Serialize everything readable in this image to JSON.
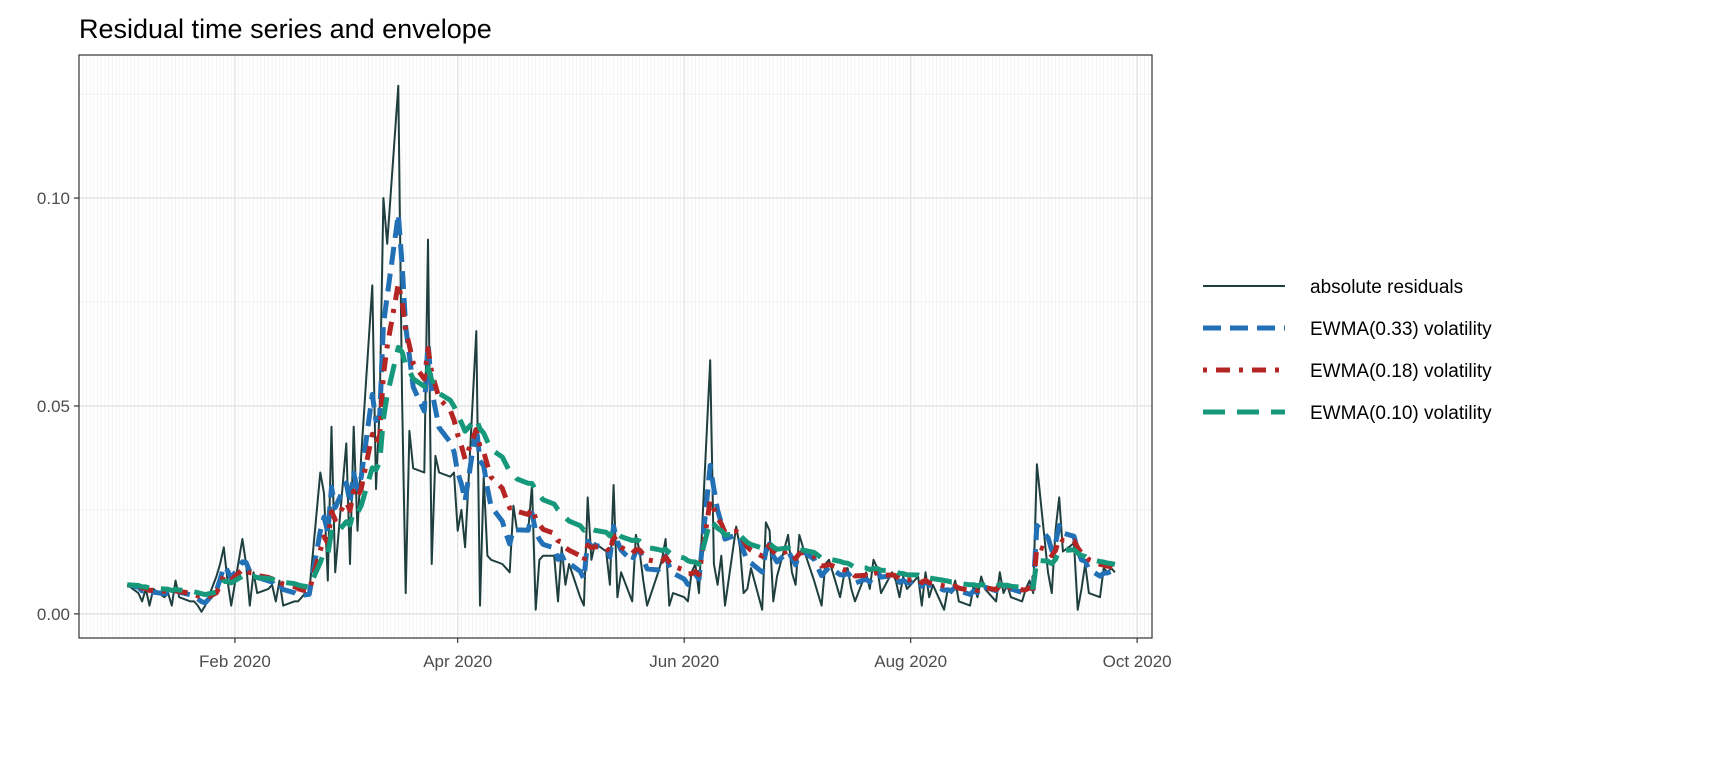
{
  "chart_data": {
    "type": "line",
    "title": "Residual time series and envelope",
    "xlabel": "",
    "ylabel": "",
    "x_start": "2020-01-03",
    "x_frequency": "weekdays",
    "xlim": [
      "2019-12-21",
      "2020-10-05"
    ],
    "ylim": [
      -0.0058,
      0.1344
    ],
    "x_ticks": [
      {
        "date": "2020-02-01",
        "label": "Feb 2020"
      },
      {
        "date": "2020-04-01",
        "label": "Apr 2020"
      },
      {
        "date": "2020-06-01",
        "label": "Jun 2020"
      },
      {
        "date": "2020-08-01",
        "label": "Aug 2020"
      },
      {
        "date": "2020-10-01",
        "label": "Oct 2020"
      }
    ],
    "y_ticks": [
      {
        "value": 0.0,
        "label": "0.00"
      },
      {
        "value": 0.05,
        "label": "0.05"
      },
      {
        "value": 0.1,
        "label": "0.10"
      }
    ],
    "y_minor": [
      0.025,
      0.075,
      0.125
    ],
    "grid": true,
    "legend_position": "right",
    "residuals": [
      0.007,
      0.005,
      0.003,
      0.006,
      0.002,
      0.006,
      0.004,
      0.005,
      0.002,
      0.008,
      0.004,
      0.003,
      0.003,
      0.002,
      0.0005,
      0.002,
      0.009,
      0.012,
      0.016,
      0.008,
      0.002,
      0.018,
      0.012,
      0.002,
      0.01,
      0.005,
      0.006,
      0.007,
      0.003,
      0.008,
      0.002,
      0.003,
      0.003,
      0.004,
      0.005,
      0.005,
      0.034,
      0.029,
      0.008,
      0.045,
      0.01,
      0.041,
      0.012,
      0.045,
      0.02,
      0.038,
      0.079,
      0.03,
      0.05,
      0.1,
      0.089,
      0.127,
      0.053,
      0.005,
      0.044,
      0.035,
      0.034,
      0.09,
      0.012,
      0.038,
      0.034,
      0.033,
      0.034,
      0.02,
      0.025,
      0.016,
      0.068,
      0.002,
      0.033,
      0.014,
      0.013,
      0.012,
      0.011,
      0.01,
      0.026,
      0.02,
      0.02,
      0.031,
      0.001,
      0.013,
      0.014,
      0.014,
      0.003,
      0.016,
      0.007,
      0.012,
      0.004,
      0.002,
      0.028,
      0.013,
      0.017,
      0.015,
      0.007,
      0.031,
      0.004,
      0.01,
      0.003,
      0.019,
      0.015,
      0.008,
      0.002,
      0.01,
      0.013,
      0.018,
      0.002,
      0.005,
      0.004,
      0.003,
      0.01,
      0.012,
      0.005,
      0.061,
      0.012,
      0.007,
      0.014,
      0.002,
      0.021,
      0.016,
      0.005,
      0.006,
      0.011,
      0.001,
      0.022,
      0.02,
      0.003,
      0.009,
      0.019,
      0.01,
      0.007,
      0.019,
      0.016,
      0.008,
      0.005,
      0.002,
      0.012,
      0.013,
      0.004,
      0.009,
      0.011,
      0.006,
      0.003,
      0.01,
      0.006,
      0.013,
      0.011,
      0.005,
      0.01,
      0.008,
      0.004,
      0.009,
      0.006,
      0.009,
      0.002,
      0.01,
      0.004,
      0.007,
      0.001,
      0.006,
      0.005,
      0.008,
      0.003,
      0.002,
      0.007,
      0.004,
      0.009,
      0.006,
      0.003,
      0.01,
      0.005,
      0.007,
      0.004,
      0.003,
      0.006,
      0.008,
      0.005,
      0.036,
      0.01,
      0.005,
      0.02,
      0.028,
      0.015,
      0.017,
      0.001,
      0.006,
      0.012,
      0.005,
      0.004,
      0.011,
      0.01,
      0.011,
      0.01
    ],
    "series": [
      {
        "name": "absolute residuals",
        "kind": "residuals",
        "color": "#1f3f3f",
        "dash": "solid"
      },
      {
        "name": "EWMA(0.33) volatility",
        "kind": "ewma",
        "lambda": 0.33,
        "color": "#2270b5",
        "dash": "dashed"
      },
      {
        "name": "EWMA(0.18) volatility",
        "kind": "ewma",
        "lambda": 0.18,
        "color": "#b52524",
        "dash": "dotdash"
      },
      {
        "name": "EWMA(0.10) volatility",
        "kind": "ewma",
        "lambda": 0.1,
        "color": "#16987a",
        "dash": "longdash"
      }
    ]
  }
}
